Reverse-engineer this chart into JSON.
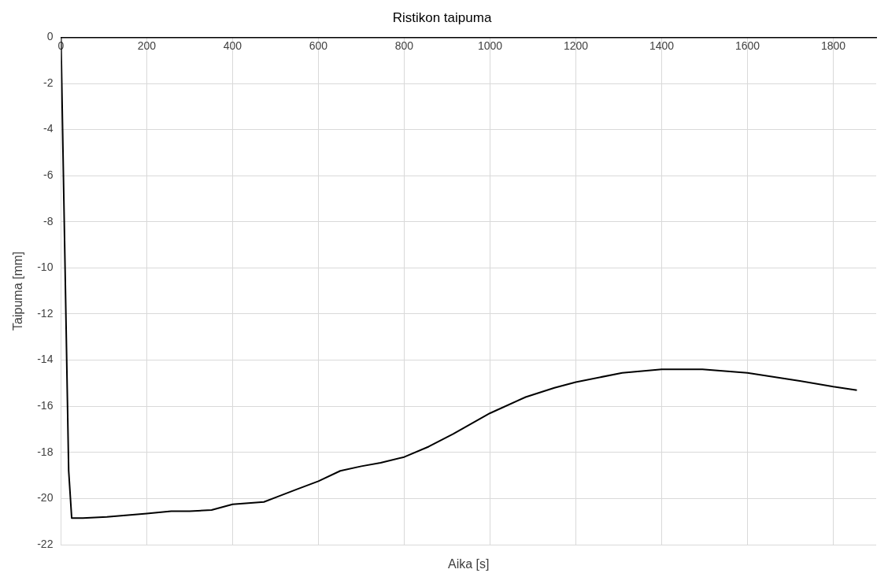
{
  "chart_data": {
    "type": "line",
    "title": "Ristikon taipuma",
    "xlabel": "Aika [s]",
    "ylabel": "Taipuma [mm]",
    "x": [
      0,
      18,
      25,
      51,
      107,
      200,
      257,
      300,
      351,
      400,
      473,
      501,
      550,
      600,
      651,
      700,
      745,
      800,
      857,
      914,
      1000,
      1083,
      1150,
      1200,
      1308,
      1400,
      1495,
      1600,
      1722,
      1800,
      1855
    ],
    "series": [
      {
        "color": "#000000",
        "values": [
          0,
          -18.8,
          -20.85,
          -20.85,
          -20.8,
          -20.65,
          -20.55,
          -20.55,
          -20.5,
          -20.25,
          -20.15,
          -19.95,
          -19.6,
          -19.25,
          -18.8,
          -18.6,
          -18.45,
          -18.2,
          -17.75,
          -17.2,
          -16.3,
          -15.6,
          -15.2,
          -14.95,
          -14.55,
          -14.4,
          -14.4,
          -14.55,
          -14.9,
          -15.15,
          -15.3
        ]
      }
    ],
    "xlim": [
      0,
      1900
    ],
    "xticks": [
      0,
      200,
      400,
      600,
      800,
      1000,
      1200,
      1400,
      1600,
      1800
    ],
    "ylim": [
      -22,
      0
    ],
    "yticks": [
      0,
      -2,
      -4,
      -6,
      -8,
      -10,
      -12,
      -14,
      -16,
      -18,
      -20,
      -22
    ],
    "grid": true,
    "legend": false,
    "marker": "none",
    "line_style": "solid"
  }
}
